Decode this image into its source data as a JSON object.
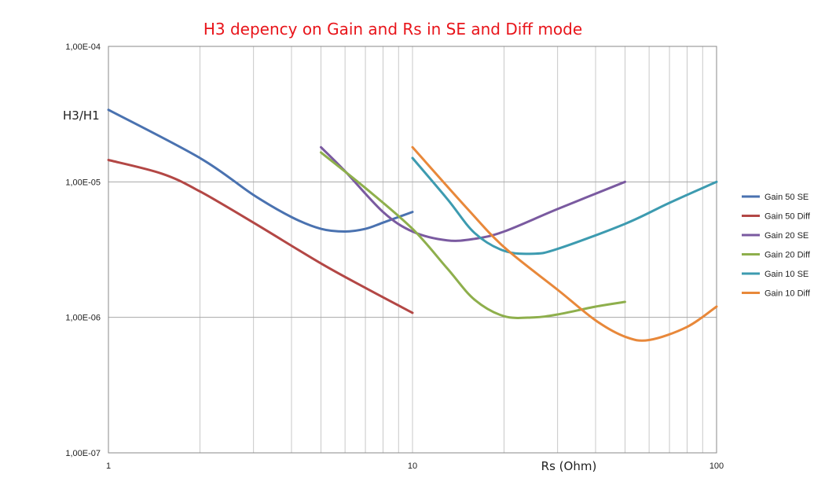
{
  "chart_data": {
    "type": "line",
    "title": "H3 depency on Gain and Rs in SE and Diff mode",
    "xlabel": "Rs (Ohm)",
    "ylabel": "H3/H1",
    "x_scale": "log",
    "y_scale": "log",
    "xlim": [
      1,
      100
    ],
    "ylim": [
      1e-07,
      0.0001
    ],
    "x_ticks": [
      {
        "value": 1,
        "label": "1"
      },
      {
        "value": 10,
        "label": "10"
      },
      {
        "value": 100,
        "label": "100"
      }
    ],
    "y_ticks": [
      {
        "value": 0.0001,
        "label": "1,00E-04"
      },
      {
        "value": 1e-05,
        "label": "1,00E-05"
      },
      {
        "value": 1e-06,
        "label": "1,00E-06"
      },
      {
        "value": 1e-07,
        "label": "1,00E-07"
      }
    ],
    "grid": true,
    "legend_position": "right",
    "series": [
      {
        "name": "Gain 50 SE",
        "color": "#4a72b0",
        "points": [
          [
            1,
            3.4e-05
          ],
          [
            2,
            1.5e-05
          ],
          [
            3,
            8e-06
          ],
          [
            4,
            5.5e-06
          ],
          [
            5,
            4.5e-06
          ],
          [
            6,
            4.3e-06
          ],
          [
            7,
            4.5e-06
          ],
          [
            8,
            5e-06
          ],
          [
            10,
            6e-06
          ]
        ]
      },
      {
        "name": "Gain 50 Diff",
        "color": "#b34745",
        "points": [
          [
            1,
            1.45e-05
          ],
          [
            1.5,
            1.15e-05
          ],
          [
            2,
            8.5e-06
          ],
          [
            3,
            5e-06
          ],
          [
            5,
            2.5e-06
          ],
          [
            7,
            1.65e-06
          ],
          [
            10,
            1.08e-06
          ]
        ]
      },
      {
        "name": "Gain 20 SE",
        "color": "#7a5aa0",
        "points": [
          [
            5,
            1.8e-05
          ],
          [
            6,
            1.2e-05
          ],
          [
            8,
            6e-06
          ],
          [
            10,
            4.3e-06
          ],
          [
            13,
            3.7e-06
          ],
          [
            16,
            3.8e-06
          ],
          [
            20,
            4.3e-06
          ],
          [
            30,
            6.3e-06
          ],
          [
            50,
            1e-05
          ]
        ]
      },
      {
        "name": "Gain 20 Diff",
        "color": "#8eaf4c",
        "points": [
          [
            5,
            1.65e-05
          ],
          [
            7,
            9e-06
          ],
          [
            10,
            4.5e-06
          ],
          [
            13,
            2.3e-06
          ],
          [
            16,
            1.35e-06
          ],
          [
            20,
            1.02e-06
          ],
          [
            25,
            1e-06
          ],
          [
            30,
            1.05e-06
          ],
          [
            40,
            1.2e-06
          ],
          [
            50,
            1.3e-06
          ]
        ]
      },
      {
        "name": "Gain 10 SE",
        "color": "#3d9bb0",
        "points": [
          [
            10,
            1.5e-05
          ],
          [
            13,
            7.5e-06
          ],
          [
            16,
            4.2e-06
          ],
          [
            20,
            3.1e-06
          ],
          [
            25,
            2.95e-06
          ],
          [
            30,
            3.2e-06
          ],
          [
            50,
            4.9e-06
          ],
          [
            70,
            7e-06
          ],
          [
            100,
            1e-05
          ]
        ]
      },
      {
        "name": "Gain 10 Diff",
        "color": "#e8883a",
        "points": [
          [
            10,
            1.8e-05
          ],
          [
            15,
            6.5e-06
          ],
          [
            20,
            3.3e-06
          ],
          [
            30,
            1.6e-06
          ],
          [
            40,
            9.5e-07
          ],
          [
            50,
            7.2e-07
          ],
          [
            60,
            6.8e-07
          ],
          [
            80,
            8.5e-07
          ],
          [
            100,
            1.2e-06
          ]
        ]
      }
    ]
  }
}
